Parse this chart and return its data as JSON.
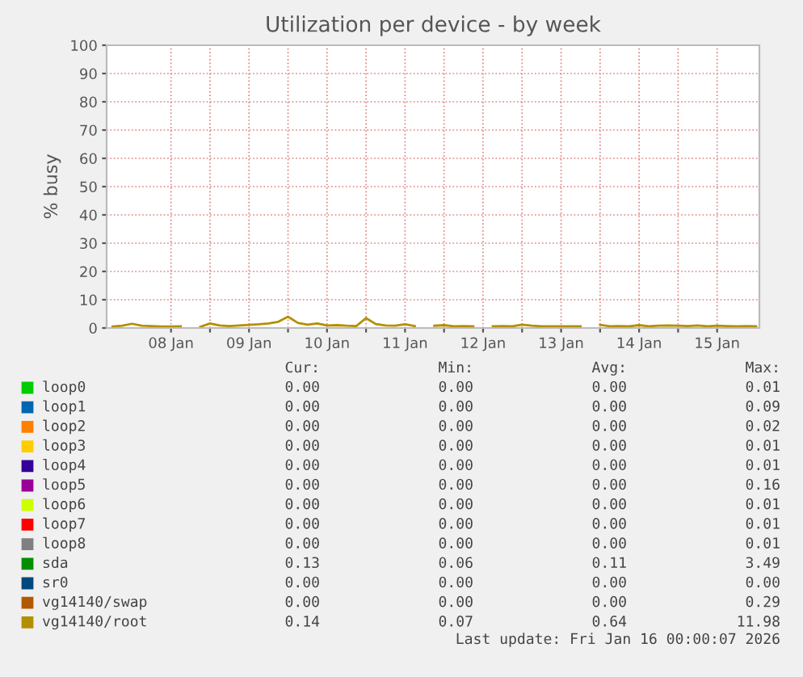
{
  "chart_data": {
    "type": "line",
    "title": "Utilization per device - by week",
    "ylabel": "% busy",
    "ylim": [
      0,
      100
    ],
    "yticks": [
      0,
      10,
      20,
      30,
      40,
      50,
      60,
      70,
      80,
      90,
      100
    ],
    "xlim": [
      "2026-01-07T16:12",
      "2026-01-16T01:00"
    ],
    "xticks": [
      {
        "value": "2026-01-08T12:00",
        "label": "08 Jan"
      },
      {
        "value": "2026-01-09T00:00",
        "label": null
      },
      {
        "value": "2026-01-09T12:00",
        "label": "09 Jan"
      },
      {
        "value": "2026-01-10T00:00",
        "label": null
      },
      {
        "value": "2026-01-10T12:00",
        "label": "10 Jan"
      },
      {
        "value": "2026-01-11T00:00",
        "label": null
      },
      {
        "value": "2026-01-11T12:00",
        "label": "11 Jan"
      },
      {
        "value": "2026-01-12T00:00",
        "label": null
      },
      {
        "value": "2026-01-12T12:00",
        "label": "12 Jan"
      },
      {
        "value": "2026-01-13T00:00",
        "label": null
      },
      {
        "value": "2026-01-13T12:00",
        "label": "13 Jan"
      },
      {
        "value": "2026-01-14T00:00",
        "label": null
      },
      {
        "value": "2026-01-14T12:00",
        "label": "14 Jan"
      },
      {
        "value": "2026-01-15T00:00",
        "label": null
      },
      {
        "value": "2026-01-15T12:00",
        "label": "15 Jan"
      }
    ],
    "grid": true,
    "legend": "bottom",
    "line_style": "solid",
    "x": [
      "2026-01-07T18:00",
      "2026-01-07T21:00",
      "2026-01-08T00:00",
      "2026-01-08T03:00",
      "2026-01-08T06:00",
      "2026-01-08T09:00",
      "2026-01-08T12:00",
      "2026-01-08T15:00",
      "2026-01-08T18:00",
      "2026-01-08T21:00",
      "2026-01-09T00:00",
      "2026-01-09T03:00",
      "2026-01-09T06:00",
      "2026-01-09T09:00",
      "2026-01-09T12:00",
      "2026-01-09T15:00",
      "2026-01-09T18:00",
      "2026-01-09T21:00",
      "2026-01-10T00:00",
      "2026-01-10T03:00",
      "2026-01-10T06:00",
      "2026-01-10T09:00",
      "2026-01-10T12:00",
      "2026-01-10T15:00",
      "2026-01-10T18:00",
      "2026-01-10T21:00",
      "2026-01-11T00:00",
      "2026-01-11T03:00",
      "2026-01-11T06:00",
      "2026-01-11T09:00",
      "2026-01-11T12:00",
      "2026-01-11T15:00",
      "2026-01-11T18:00",
      "2026-01-11T21:00",
      "2026-01-12T00:00",
      "2026-01-12T03:00",
      "2026-01-12T06:00",
      "2026-01-12T09:00",
      "2026-01-12T12:00",
      "2026-01-12T15:00",
      "2026-01-12T18:00",
      "2026-01-12T21:00",
      "2026-01-13T00:00",
      "2026-01-13T03:00",
      "2026-01-13T06:00",
      "2026-01-13T09:00",
      "2026-01-13T12:00",
      "2026-01-13T15:00",
      "2026-01-13T18:00",
      "2026-01-13T21:00",
      "2026-01-14T00:00",
      "2026-01-14T03:00",
      "2026-01-14T06:00",
      "2026-01-14T09:00",
      "2026-01-14T12:00",
      "2026-01-14T15:00",
      "2026-01-14T18:00",
      "2026-01-14T21:00",
      "2026-01-15T00:00",
      "2026-01-15T03:00",
      "2026-01-15T06:00",
      "2026-01-15T09:00",
      "2026-01-15T12:00",
      "2026-01-15T15:00",
      "2026-01-15T18:00",
      "2026-01-15T21:00",
      "2026-01-16T00:00"
    ],
    "series": [
      {
        "name": "loop0",
        "color": "#00cc00",
        "values": [
          null,
          null,
          null,
          null,
          null,
          null,
          null,
          null,
          null,
          null,
          null,
          null,
          null,
          null,
          null,
          null,
          null,
          null,
          null,
          null,
          null,
          null,
          null,
          null,
          null,
          null,
          null,
          null,
          null,
          null,
          null,
          null,
          null,
          null,
          null,
          null,
          null,
          null,
          null,
          null,
          null,
          null,
          null,
          null,
          null,
          null,
          null,
          null,
          null,
          null,
          null,
          null,
          null,
          null,
          null,
          null,
          null,
          null,
          null,
          null,
          null,
          null,
          null,
          null,
          null,
          null,
          null
        ]
      },
      {
        "name": "loop1",
        "color": "#0066b3",
        "values": [
          null,
          null,
          null,
          null,
          null,
          null,
          null,
          null,
          null,
          null,
          null,
          null,
          null,
          null,
          null,
          null,
          null,
          null,
          null,
          null,
          null,
          null,
          null,
          null,
          null,
          null,
          null,
          null,
          null,
          null,
          null,
          null,
          null,
          null,
          null,
          null,
          null,
          null,
          null,
          null,
          null,
          null,
          null,
          null,
          null,
          null,
          null,
          null,
          null,
          null,
          null,
          null,
          null,
          null,
          null,
          null,
          null,
          null,
          null,
          null,
          null,
          null,
          null,
          null,
          null,
          null,
          null
        ]
      },
      {
        "name": "loop2",
        "color": "#ff8000",
        "values": [
          null,
          null,
          null,
          null,
          null,
          null,
          null,
          null,
          null,
          null,
          null,
          null,
          null,
          null,
          null,
          null,
          null,
          null,
          null,
          null,
          null,
          null,
          null,
          null,
          null,
          null,
          null,
          null,
          null,
          null,
          null,
          null,
          null,
          null,
          null,
          null,
          null,
          null,
          null,
          null,
          null,
          null,
          null,
          null,
          null,
          null,
          null,
          null,
          null,
          null,
          null,
          null,
          null,
          null,
          null,
          null,
          null,
          null,
          null,
          null,
          null,
          null,
          null,
          null,
          null,
          null,
          null
        ]
      },
      {
        "name": "loop3",
        "color": "#ffcc00",
        "values": [
          null,
          null,
          null,
          null,
          null,
          null,
          null,
          null,
          null,
          null,
          null,
          null,
          null,
          null,
          null,
          null,
          null,
          null,
          null,
          null,
          null,
          null,
          null,
          null,
          null,
          null,
          null,
          null,
          null,
          null,
          null,
          null,
          null,
          null,
          null,
          null,
          null,
          null,
          null,
          null,
          null,
          null,
          null,
          null,
          null,
          null,
          null,
          null,
          null,
          null,
          null,
          null,
          null,
          null,
          null,
          null,
          null,
          null,
          null,
          null,
          null,
          null,
          null,
          null,
          null,
          null,
          null
        ]
      },
      {
        "name": "loop4",
        "color": "#330099",
        "values": [
          null,
          null,
          null,
          null,
          null,
          null,
          null,
          null,
          null,
          null,
          null,
          null,
          null,
          null,
          null,
          null,
          null,
          null,
          null,
          null,
          null,
          null,
          null,
          null,
          null,
          null,
          null,
          null,
          null,
          null,
          null,
          null,
          null,
          null,
          null,
          null,
          null,
          null,
          null,
          null,
          null,
          null,
          null,
          null,
          null,
          null,
          null,
          null,
          null,
          null,
          null,
          null,
          null,
          null,
          null,
          null,
          null,
          null,
          null,
          null,
          null,
          null,
          null,
          null,
          null,
          null,
          null
        ]
      },
      {
        "name": "loop5",
        "color": "#990099",
        "values": [
          null,
          null,
          null,
          null,
          null,
          null,
          null,
          null,
          null,
          null,
          null,
          null,
          null,
          null,
          null,
          null,
          null,
          null,
          null,
          null,
          null,
          null,
          null,
          null,
          null,
          null,
          null,
          null,
          null,
          null,
          null,
          null,
          null,
          null,
          null,
          null,
          null,
          null,
          null,
          null,
          null,
          null,
          null,
          null,
          null,
          null,
          null,
          null,
          null,
          null,
          null,
          null,
          null,
          null,
          null,
          null,
          null,
          null,
          null,
          null,
          null,
          null,
          null,
          null,
          null,
          null,
          null
        ]
      },
      {
        "name": "loop6",
        "color": "#ccff00",
        "values": [
          null,
          null,
          null,
          null,
          null,
          null,
          null,
          null,
          null,
          null,
          null,
          null,
          null,
          null,
          null,
          null,
          null,
          null,
          null,
          null,
          null,
          null,
          null,
          null,
          null,
          null,
          null,
          null,
          null,
          null,
          null,
          null,
          null,
          null,
          null,
          null,
          null,
          null,
          null,
          null,
          null,
          null,
          null,
          null,
          null,
          null,
          null,
          null,
          null,
          null,
          null,
          null,
          null,
          null,
          null,
          null,
          null,
          null,
          null,
          null,
          null,
          null,
          null,
          null,
          null,
          null,
          null
        ]
      },
      {
        "name": "loop7",
        "color": "#ff0000",
        "values": [
          null,
          null,
          null,
          null,
          null,
          null,
          null,
          null,
          null,
          null,
          null,
          null,
          null,
          null,
          null,
          null,
          null,
          null,
          null,
          null,
          null,
          null,
          null,
          null,
          null,
          null,
          null,
          null,
          null,
          null,
          null,
          null,
          null,
          null,
          null,
          null,
          null,
          null,
          null,
          null,
          null,
          null,
          null,
          null,
          null,
          null,
          null,
          null,
          null,
          null,
          null,
          null,
          null,
          null,
          null,
          null,
          null,
          null,
          null,
          null,
          null,
          null,
          null,
          null,
          null,
          null,
          null
        ]
      },
      {
        "name": "loop8",
        "color": "#808080",
        "values": [
          null,
          null,
          null,
          null,
          null,
          null,
          null,
          null,
          null,
          null,
          null,
          null,
          null,
          null,
          null,
          null,
          null,
          null,
          null,
          null,
          null,
          null,
          null,
          null,
          null,
          null,
          null,
          null,
          null,
          null,
          null,
          null,
          null,
          null,
          null,
          null,
          null,
          null,
          null,
          null,
          null,
          null,
          null,
          null,
          null,
          null,
          null,
          null,
          null,
          null,
          null,
          null,
          null,
          null,
          null,
          null,
          null,
          null,
          null,
          null,
          null,
          null,
          null,
          null,
          null,
          null,
          null
        ]
      },
      {
        "name": "sda",
        "color": "#008f00",
        "values": [
          null,
          null,
          null,
          null,
          null,
          null,
          null,
          null,
          null,
          null,
          null,
          null,
          null,
          null,
          null,
          null,
          null,
          null,
          null,
          null,
          null,
          null,
          null,
          null,
          null,
          null,
          null,
          null,
          null,
          null,
          null,
          null,
          null,
          null,
          null,
          null,
          null,
          null,
          null,
          null,
          null,
          null,
          null,
          null,
          null,
          null,
          null,
          null,
          null,
          null,
          null,
          null,
          null,
          null,
          null,
          null,
          null,
          null,
          null,
          null,
          null,
          null,
          null,
          null,
          null,
          null,
          null
        ]
      },
      {
        "name": "sr0",
        "color": "#00487d",
        "values": [
          null,
          null,
          null,
          null,
          null,
          null,
          null,
          null,
          null,
          null,
          null,
          null,
          null,
          null,
          null,
          null,
          null,
          null,
          null,
          null,
          null,
          null,
          null,
          null,
          null,
          null,
          null,
          null,
          null,
          null,
          null,
          null,
          null,
          null,
          null,
          null,
          null,
          null,
          null,
          null,
          null,
          null,
          null,
          null,
          null,
          null,
          null,
          null,
          null,
          null,
          null,
          null,
          null,
          null,
          null,
          null,
          null,
          null,
          null,
          null,
          null,
          null,
          null,
          null,
          null,
          null,
          null
        ]
      },
      {
        "name": "vg14140/swap",
        "color": "#b35a00",
        "values": [
          null,
          null,
          null,
          null,
          null,
          null,
          null,
          null,
          null,
          null,
          null,
          null,
          null,
          null,
          null,
          null,
          null,
          null,
          null,
          null,
          null,
          null,
          null,
          null,
          null,
          null,
          null,
          null,
          null,
          null,
          null,
          null,
          null,
          null,
          null,
          null,
          null,
          null,
          null,
          null,
          null,
          null,
          null,
          null,
          null,
          null,
          null,
          null,
          null,
          null,
          null,
          null,
          null,
          null,
          null,
          null,
          null,
          null,
          null,
          null,
          null,
          null,
          null,
          null,
          null,
          null,
          null
        ]
      },
      {
        "name": "vg14140/root",
        "color": "#b38f00",
        "values": [
          0.5,
          0.8,
          1.5,
          0.8,
          0.7,
          0.5,
          0.5,
          0.6,
          null,
          0.4,
          1.6,
          0.9,
          0.7,
          0.9,
          1.1,
          1.3,
          1.6,
          2.2,
          4.0,
          1.8,
          1.2,
          1.6,
          0.9,
          1.0,
          0.8,
          0.7,
          3.5,
          1.4,
          0.9,
          0.8,
          1.3,
          0.7,
          null,
          0.8,
          1.0,
          0.6,
          0.7,
          0.6,
          null,
          0.6,
          0.7,
          0.6,
          1.2,
          0.8,
          0.6,
          0.6,
          0.6,
          0.6,
          0.6,
          null,
          1.1,
          0.6,
          0.7,
          0.6,
          1.0,
          0.6,
          0.8,
          0.9,
          0.8,
          0.7,
          0.9,
          0.6,
          0.8,
          0.7,
          0.6,
          0.7,
          0.6
        ]
      }
    ],
    "annotations": [
      "Cur:",
      "Min:",
      "Avg:",
      "Max:",
      "0.00",
      "0.00",
      "0.00",
      "0.01",
      "0.00",
      "0.00",
      "0.00",
      "0.09",
      "0.00",
      "0.00",
      "0.00",
      "0.02",
      "0.00",
      "0.00",
      "0.00",
      "0.01",
      "0.00",
      "0.00",
      "0.00",
      "0.01",
      "0.00",
      "0.00",
      "0.00",
      "0.16",
      "0.00",
      "0.00",
      "0.00",
      "0.01",
      "0.00",
      "0.00",
      "0.00",
      "0.01",
      "0.00",
      "0.00",
      "0.00",
      "0.01",
      "0.13",
      "0.06",
      "0.11",
      "3.49",
      "0.00",
      "0.00",
      "0.00",
      "0.00",
      "0.00",
      "0.00",
      "0.00",
      "0.29",
      "0.14",
      "0.07",
      "0.64",
      "11.98",
      "Last update: Fri Jan 16 00:00:07 2026"
    ]
  }
}
